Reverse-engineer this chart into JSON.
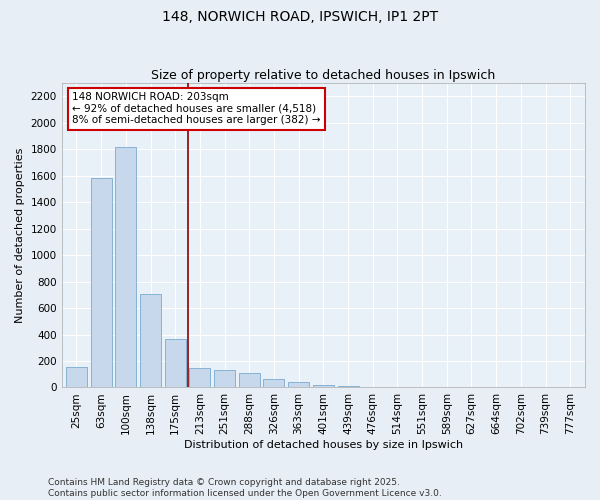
{
  "title": "148, NORWICH ROAD, IPSWICH, IP1 2PT",
  "subtitle": "Size of property relative to detached houses in Ipswich",
  "xlabel": "Distribution of detached houses by size in Ipswich",
  "ylabel": "Number of detached properties",
  "categories": [
    "25sqm",
    "63sqm",
    "100sqm",
    "138sqm",
    "175sqm",
    "213sqm",
    "251sqm",
    "288sqm",
    "326sqm",
    "363sqm",
    "401sqm",
    "439sqm",
    "476sqm",
    "514sqm",
    "551sqm",
    "589sqm",
    "627sqm",
    "664sqm",
    "702sqm",
    "739sqm",
    "777sqm"
  ],
  "values": [
    155,
    1580,
    1820,
    710,
    370,
    150,
    130,
    110,
    65,
    40,
    15,
    8,
    3,
    0,
    0,
    0,
    0,
    0,
    0,
    0,
    0
  ],
  "bar_color": "#c8d8ec",
  "bar_edge_color": "#7aaad0",
  "vline_x_idx": 4.5,
  "vline_color": "#8b0000",
  "annotation_line1": "148 NORWICH ROAD: 203sqm",
  "annotation_line2": "← 92% of detached houses are smaller (4,518)",
  "annotation_line3": "8% of semi-detached houses are larger (382) →",
  "annotation_box_color": "#ffffff",
  "annotation_box_edge": "#cc0000",
  "ylim": [
    0,
    2300
  ],
  "yticks": [
    0,
    200,
    400,
    600,
    800,
    1000,
    1200,
    1400,
    1600,
    1800,
    2000,
    2200
  ],
  "background_color": "#e8eef5",
  "plot_bg_color": "#e8f0f8",
  "grid_color": "#ffffff",
  "footer_line1": "Contains HM Land Registry data © Crown copyright and database right 2025.",
  "footer_line2": "Contains public sector information licensed under the Open Government Licence v3.0.",
  "title_fontsize": 10,
  "subtitle_fontsize": 9,
  "axis_label_fontsize": 8,
  "tick_fontsize": 7.5,
  "annotation_fontsize": 7.5,
  "footer_fontsize": 6.5
}
